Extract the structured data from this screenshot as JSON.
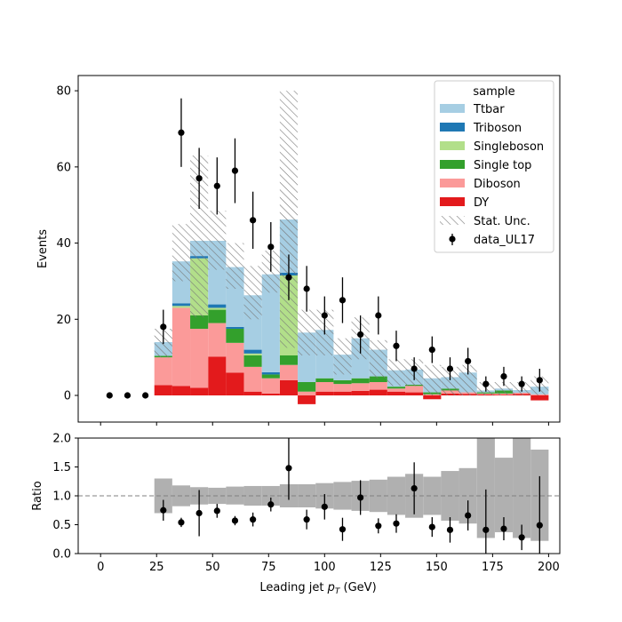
{
  "chart_data": [
    {
      "type": "bar",
      "stacked": true,
      "panel": "main",
      "ylabel": "Events",
      "xlim": [
        -10,
        205
      ],
      "ylim": [
        -7,
        84
      ],
      "yticks": [
        0,
        20,
        40,
        60,
        80
      ],
      "bin_edges": [
        24,
        32,
        40,
        48,
        56,
        64,
        72,
        80,
        88,
        96,
        104,
        112,
        120,
        128,
        136,
        144,
        152,
        160,
        168,
        176,
        184,
        192,
        200
      ],
      "series": [
        {
          "name": "DY",
          "color": "#e31a1c",
          "values": [
            2.7,
            2.5,
            2.0,
            10.2,
            6.0,
            1.0,
            0.5,
            4.0,
            -2.3,
            1.0,
            1.0,
            1.2,
            1.5,
            1.0,
            0.8,
            -1.0,
            0.5,
            0.4,
            0.3,
            0.2,
            0.4,
            -1.3
          ]
        },
        {
          "name": "Diboson",
          "color": "#fb9a99",
          "values": [
            7.3,
            20.5,
            15.5,
            8.8,
            7.8,
            6.5,
            4.0,
            4.0,
            1.0,
            2.5,
            2.0,
            2.0,
            2.0,
            0.8,
            1.7,
            0.3,
            0.8,
            0.4,
            0.2,
            0.3,
            0.3,
            0.3
          ]
        },
        {
          "name": "Single top",
          "color": "#33a02c",
          "values": [
            0.4,
            0.0,
            3.5,
            3.5,
            3.7,
            3.0,
            1.0,
            2.5,
            2.5,
            1.0,
            1.0,
            1.3,
            1.5,
            0.5,
            0.3,
            0.5,
            0.5,
            0.0,
            0.3,
            0.8,
            0.0,
            0.0
          ]
        },
        {
          "name": "Singleboson",
          "color": "#b2df8a",
          "values": [
            0.0,
            0.5,
            15.0,
            0.5,
            0.0,
            0.5,
            0.0,
            21.0,
            0.0,
            0.0,
            0.0,
            0.0,
            0.0,
            0.0,
            0.0,
            0.0,
            0.0,
            0.0,
            0.0,
            0.0,
            0.0,
            0.0
          ]
        },
        {
          "name": "Triboson",
          "color": "#1f78b4",
          "values": [
            0.0,
            0.7,
            0.6,
            0.9,
            0.5,
            1.0,
            0.6,
            0.7,
            0.0,
            0.0,
            0.0,
            0.0,
            0.0,
            0.0,
            0.0,
            0.0,
            0.0,
            0.0,
            0.0,
            0.0,
            0.0,
            0.0
          ]
        },
        {
          "name": "Ttbar",
          "color": "#a6cee3",
          "values": [
            3.6,
            11.0,
            4.0,
            16.7,
            15.7,
            14.3,
            25.7,
            14.0,
            13.0,
            12.7,
            6.7,
            10.5,
            7.0,
            4.3,
            4.0,
            3.7,
            3.0,
            5.2,
            0.5,
            0.5,
            0.7,
            2.0
          ]
        }
      ],
      "stat_unc": {
        "name": "Stat. Unc.",
        "up": [
          17.5,
          45.0,
          63.0,
          48.5,
          40.0,
          34.0,
          38.0,
          80.0,
          22.5,
          22.5,
          15.0,
          20.5,
          14.5,
          9.5,
          9.5,
          8.0,
          7.5,
          8.0,
          3.5,
          3.5,
          3.5,
          5.0
        ],
        "down": [
          10.0,
          30.0,
          20.5,
          33.0,
          28.0,
          20.0,
          27.0,
          12.5,
          10.5,
          10.5,
          5.5,
          9.5,
          4.5,
          2.5,
          2.5,
          0.0,
          0.0,
          0.0,
          0.0,
          0.0,
          0.0,
          0.0
        ]
      },
      "data": {
        "name": "data_UL17",
        "x": [
          4,
          12,
          20,
          28,
          36,
          44,
          52,
          60,
          68,
          76,
          84,
          92,
          100,
          108,
          116,
          124,
          132,
          140,
          148,
          156,
          164,
          172,
          180,
          188,
          196
        ],
        "y": [
          0,
          0,
          0,
          18,
          69,
          57,
          55,
          59,
          46,
          39,
          31,
          28,
          21,
          25,
          16,
          21,
          13,
          7,
          12,
          7,
          9,
          3,
          5,
          3,
          4
        ],
        "err": [
          0,
          0,
          0,
          4.5,
          9,
          8,
          7.5,
          8.5,
          7.5,
          6.5,
          6,
          6,
          5,
          6,
          5,
          5,
          4,
          3,
          3.5,
          3,
          3.5,
          2,
          2.5,
          2,
          3
        ]
      },
      "legend": {
        "title": "sample",
        "placement": "upper right",
        "entries": [
          "Ttbar",
          "Triboson",
          "Singleboson",
          "Single top",
          "Diboson",
          "DY",
          "Stat. Unc.",
          "data_UL17"
        ]
      }
    },
    {
      "type": "scatter",
      "panel": "ratio",
      "ylabel": "Ratio",
      "xlabel": "Leading jet  p_T (GeV)",
      "xlim": [
        -10,
        205
      ],
      "ylim": [
        0,
        2
      ],
      "xticks": [
        0,
        25,
        50,
        75,
        100,
        125,
        150,
        175,
        200
      ],
      "yticks": [
        "0.0",
        "0.5",
        "1.0",
        "1.5",
        "2.0"
      ],
      "reference_line": 1.0,
      "unc_band": {
        "bin_edges": [
          24,
          32,
          40,
          48,
          56,
          64,
          72,
          80,
          88,
          96,
          104,
          112,
          120,
          128,
          136,
          144,
          152,
          160,
          168,
          176,
          184,
          192,
          200
        ],
        "low": [
          0.7,
          0.82,
          0.85,
          0.86,
          0.85,
          0.83,
          0.83,
          0.8,
          0.8,
          0.78,
          0.76,
          0.74,
          0.72,
          0.67,
          0.62,
          0.67,
          0.57,
          0.52,
          0.27,
          0.37,
          0.27,
          0.22
        ],
        "high": [
          1.3,
          1.18,
          1.15,
          1.14,
          1.16,
          1.17,
          1.17,
          1.2,
          1.2,
          1.22,
          1.24,
          1.26,
          1.28,
          1.33,
          1.38,
          1.33,
          1.43,
          1.48,
          2.0,
          1.66,
          2.0,
          1.8
        ]
      },
      "points": {
        "x": [
          28,
          36,
          44,
          52,
          60,
          68,
          76,
          84,
          92,
          100,
          108,
          116,
          124,
          132,
          140,
          148,
          156,
          164,
          172,
          180,
          188,
          196
        ],
        "y": [
          0.75,
          0.54,
          0.7,
          0.74,
          0.57,
          0.59,
          0.85,
          1.48,
          0.59,
          0.81,
          0.42,
          0.97,
          0.48,
          0.52,
          1.13,
          0.46,
          0.41,
          0.66,
          0.41,
          0.43,
          0.28,
          0.49
        ],
        "err": [
          0.18,
          0.08,
          0.4,
          0.12,
          0.08,
          0.12,
          0.12,
          0.55,
          0.17,
          0.22,
          0.2,
          0.3,
          0.13,
          0.16,
          0.45,
          0.17,
          0.22,
          0.26,
          0.7,
          0.2,
          0.22,
          0.85
        ]
      }
    }
  ]
}
